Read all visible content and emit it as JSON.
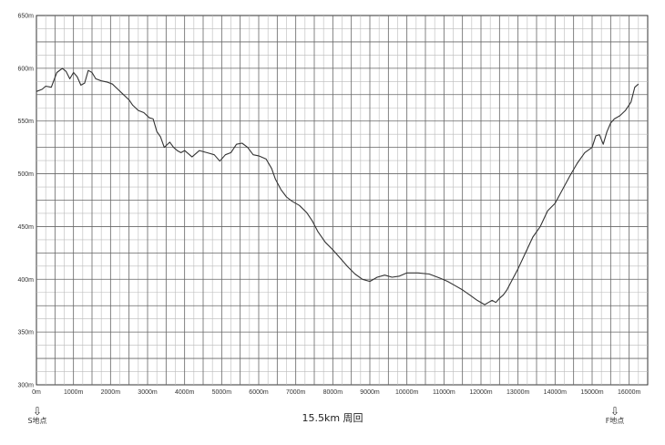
{
  "chart_data": {
    "type": "line",
    "title": "",
    "xlabel": "15.5km 周回",
    "ylabel": "",
    "xlim": [
      0,
      16500
    ],
    "ylim": [
      300,
      650
    ],
    "grid": true,
    "x_ticks": [
      "0m",
      "1000m",
      "2000m",
      "3000m",
      "4000m",
      "5000m",
      "6000m",
      "7000m",
      "8000m",
      "9000m",
      "10000m",
      "11000m",
      "12000m",
      "13000m",
      "14000m",
      "15000m",
      "16000m"
    ],
    "x_tick_values": [
      0,
      1000,
      2000,
      3000,
      4000,
      5000,
      6000,
      7000,
      8000,
      9000,
      10000,
      11000,
      12000,
      13000,
      14000,
      15000,
      16000
    ],
    "y_ticks": [
      "300m",
      "350m",
      "400m",
      "450m",
      "500m",
      "550m",
      "600m",
      "650m"
    ],
    "y_tick_values": [
      300,
      350,
      400,
      450,
      500,
      550,
      600,
      650
    ],
    "start_marker": {
      "label": "S地点",
      "x": 0
    },
    "end_marker": {
      "label": "F地点",
      "x": 15600
    },
    "series": [
      {
        "x": [
          0,
          150,
          250,
          400,
          550,
          700,
          800,
          900,
          1000,
          1100,
          1200,
          1300,
          1400,
          1500,
          1600,
          1750,
          1900,
          2050,
          2200,
          2350,
          2500,
          2600,
          2750,
          2900,
          3050,
          3150,
          3250,
          3350,
          3450,
          3600,
          3700,
          3800,
          3900,
          4000,
          4200,
          4400,
          4600,
          4800,
          4950,
          5100,
          5250,
          5400,
          5550,
          5700,
          5850,
          6000,
          6200,
          6350,
          6450,
          6600,
          6750,
          6900,
          7100,
          7300,
          7450,
          7600,
          7800,
          8000,
          8200,
          8400,
          8600,
          8800,
          9000,
          9200,
          9400,
          9600,
          9800,
          10000,
          10300,
          10600,
          10900,
          11100,
          11300,
          11500,
          11700,
          11900,
          12100,
          12200,
          12300,
          12400,
          12500,
          12600,
          12700,
          12850,
          13000,
          13200,
          13400,
          13600,
          13800,
          14000,
          14200,
          14400,
          14600,
          14800,
          15000,
          15100,
          15200,
          15300,
          15400,
          15500,
          15600,
          15750,
          15900,
          16050,
          16150,
          16250
        ],
        "y": [
          578,
          580,
          583,
          582,
          596,
          600,
          597,
          590,
          596,
          592,
          584,
          586,
          598,
          596,
          590,
          588,
          587,
          585,
          580,
          575,
          570,
          565,
          560,
          558,
          553,
          552,
          540,
          535,
          525,
          530,
          525,
          522,
          520,
          522,
          516,
          522,
          520,
          518,
          512,
          518,
          520,
          528,
          529,
          525,
          518,
          517,
          514,
          505,
          495,
          485,
          478,
          474,
          470,
          463,
          455,
          445,
          435,
          428,
          420,
          412,
          405,
          400,
          398,
          402,
          404,
          402,
          403,
          406,
          406,
          405,
          401,
          398,
          394,
          390,
          385,
          380,
          376,
          378,
          380,
          378,
          382,
          385,
          390,
          400,
          410,
          425,
          440,
          450,
          465,
          472,
          485,
          498,
          510,
          520,
          525,
          536,
          537,
          528,
          540,
          548,
          552,
          555,
          560,
          568,
          582,
          585
        ]
      }
    ]
  }
}
